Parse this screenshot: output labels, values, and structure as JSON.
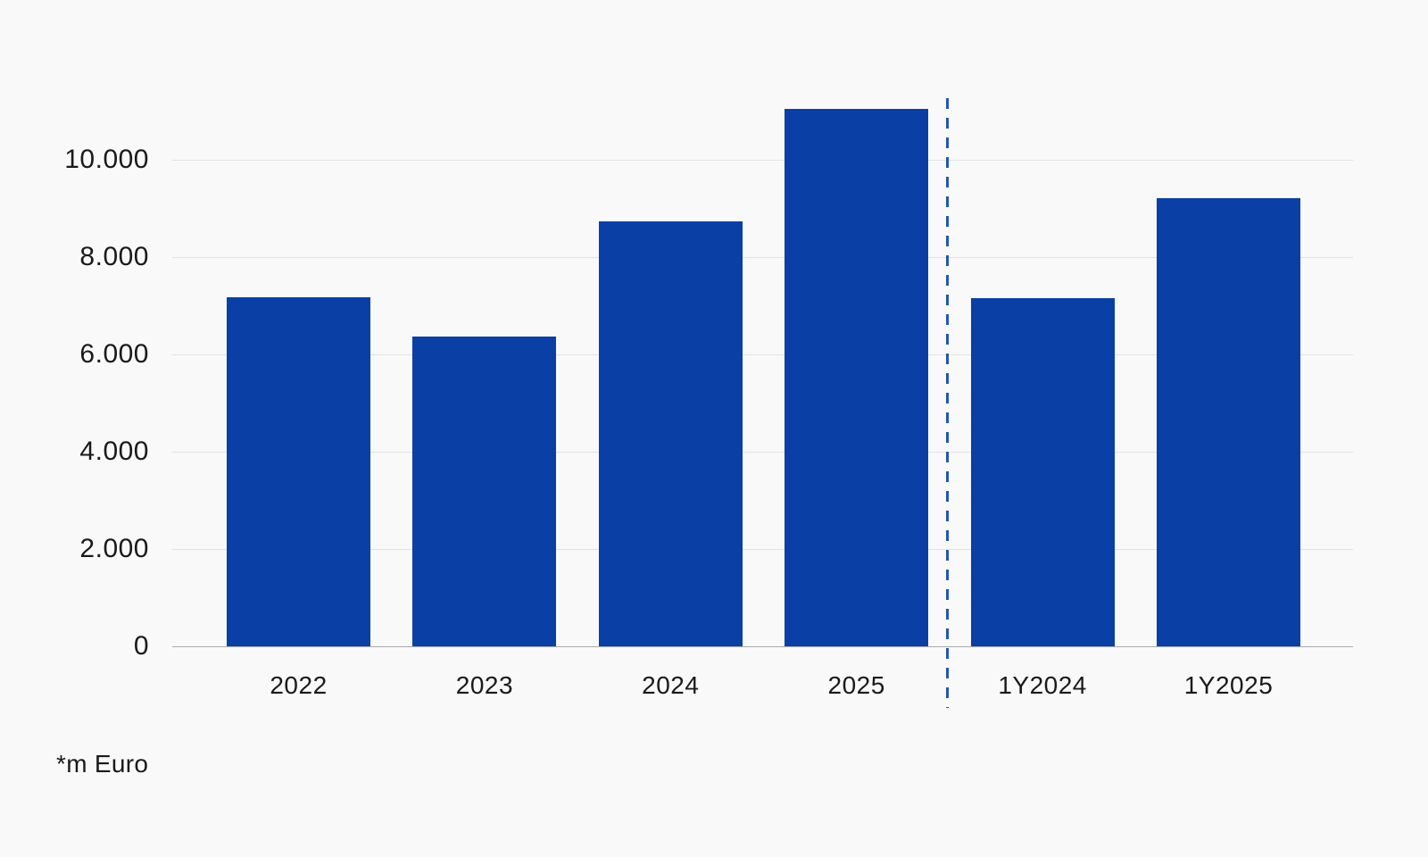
{
  "chart_data": {
    "type": "bar",
    "title": "",
    "categories": [
      "2022",
      "2023",
      "2024",
      "2025",
      "1Y2024",
      "1Y2025"
    ],
    "values": [
      7170,
      6360,
      8730,
      11050,
      7160,
      9210
    ],
    "xlabel": "",
    "ylabel": "",
    "unit_note": "*m Euro",
    "ylim": [
      0,
      11500
    ],
    "yticks": [
      0,
      2000,
      4000,
      6000,
      8000,
      10000
    ],
    "ytick_labels": [
      "0",
      "2.000",
      "4.000",
      "6.000",
      "8.000",
      "10.000"
    ],
    "grid": true,
    "legend": false,
    "separator": {
      "style": "dashed-vertical",
      "between": [
        "2025",
        "1Y2024"
      ]
    }
  },
  "colors": {
    "bar": "#0a3fa5",
    "separator": "#2456b0",
    "gridline": "#e3e3e3",
    "zero_line": "#ababab",
    "text": "#1a1a1a",
    "background": "#f9f9f9"
  }
}
